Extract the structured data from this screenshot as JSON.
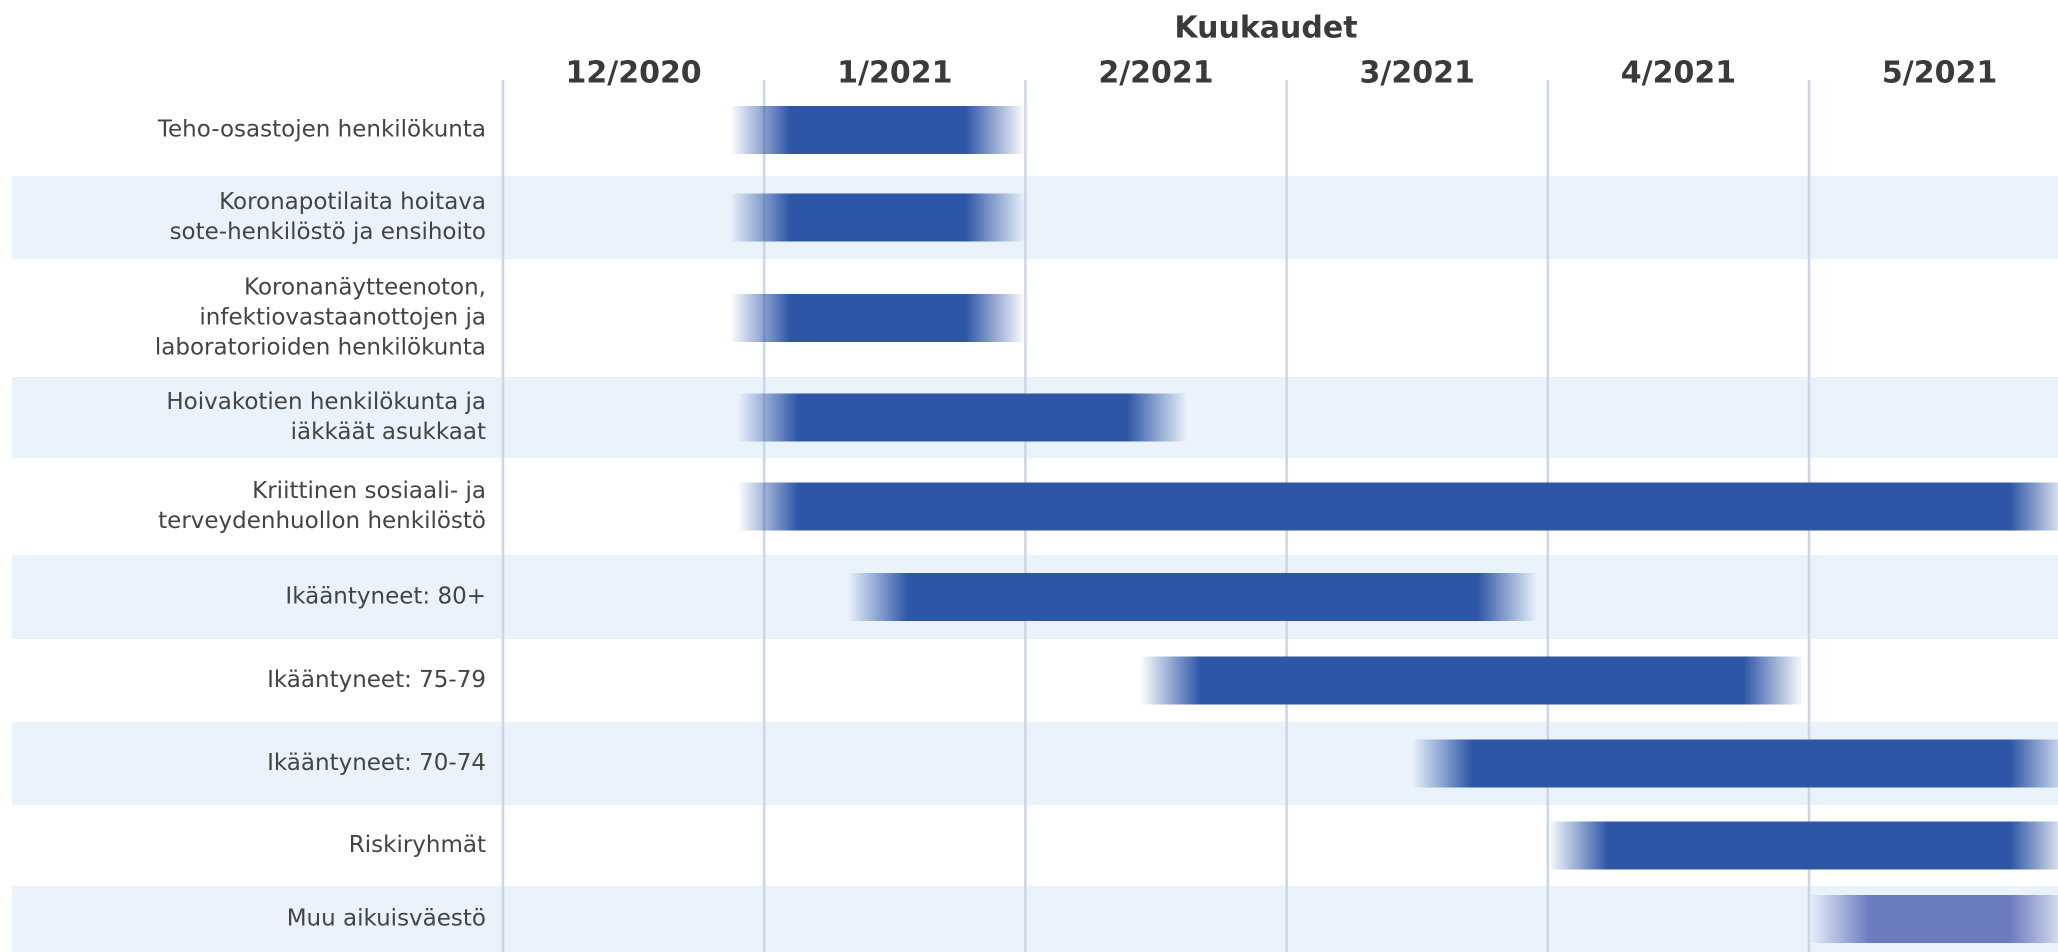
{
  "chart_data": {
    "type": "gantt",
    "x_label": "Kuukaudet",
    "months": [
      "12/2020",
      "1/2021",
      "2/2021",
      "3/2021",
      "4/2021",
      "5/2021"
    ],
    "xlim": [
      0,
      6
    ],
    "xticks": [
      0,
      1,
      2,
      3,
      4,
      5
    ],
    "grid": true,
    "categories": [
      [
        "Teho-osastojen henkilökunta"
      ],
      [
        "Koronapotilaita hoitava",
        "sote-henkilöstö ja ensihoito"
      ],
      [
        "Koronanäytteenoton,",
        "infektiovastaanottojen ja",
        "laboratorioiden henkilökunta"
      ],
      [
        "Hoivakotien henkilökunta ja",
        "iäkkäät asukkaat"
      ],
      [
        "Kriittinen sosiaali- ja",
        "terveydenhuollon henkilöstö"
      ],
      [
        "Ikääntyneet: 80+"
      ],
      [
        "Ikääntyneet: 75-79"
      ],
      [
        "Ikääntyneet: 70-74"
      ],
      [
        "Riskiryhmät"
      ],
      [
        "Muu aikuisväestö"
      ]
    ],
    "start": [
      0.87,
      0.87,
      0.87,
      0.9,
      0.9,
      1.32,
      2.44,
      3.48,
      4.0,
      5.0
    ],
    "end": [
      2.0,
      2.0,
      2.0,
      2.62,
      6,
      3.96,
      4.98,
      6,
      6,
      6
    ],
    "bar_colors": [
      "#2e56a6",
      "#2e56a6",
      "#2e56a6",
      "#2e56a6",
      "#2e56a6",
      "#2e56a6",
      "#2e56a6",
      "#2e56a6",
      "#2e56a6",
      "#6b7bbf"
    ]
  }
}
